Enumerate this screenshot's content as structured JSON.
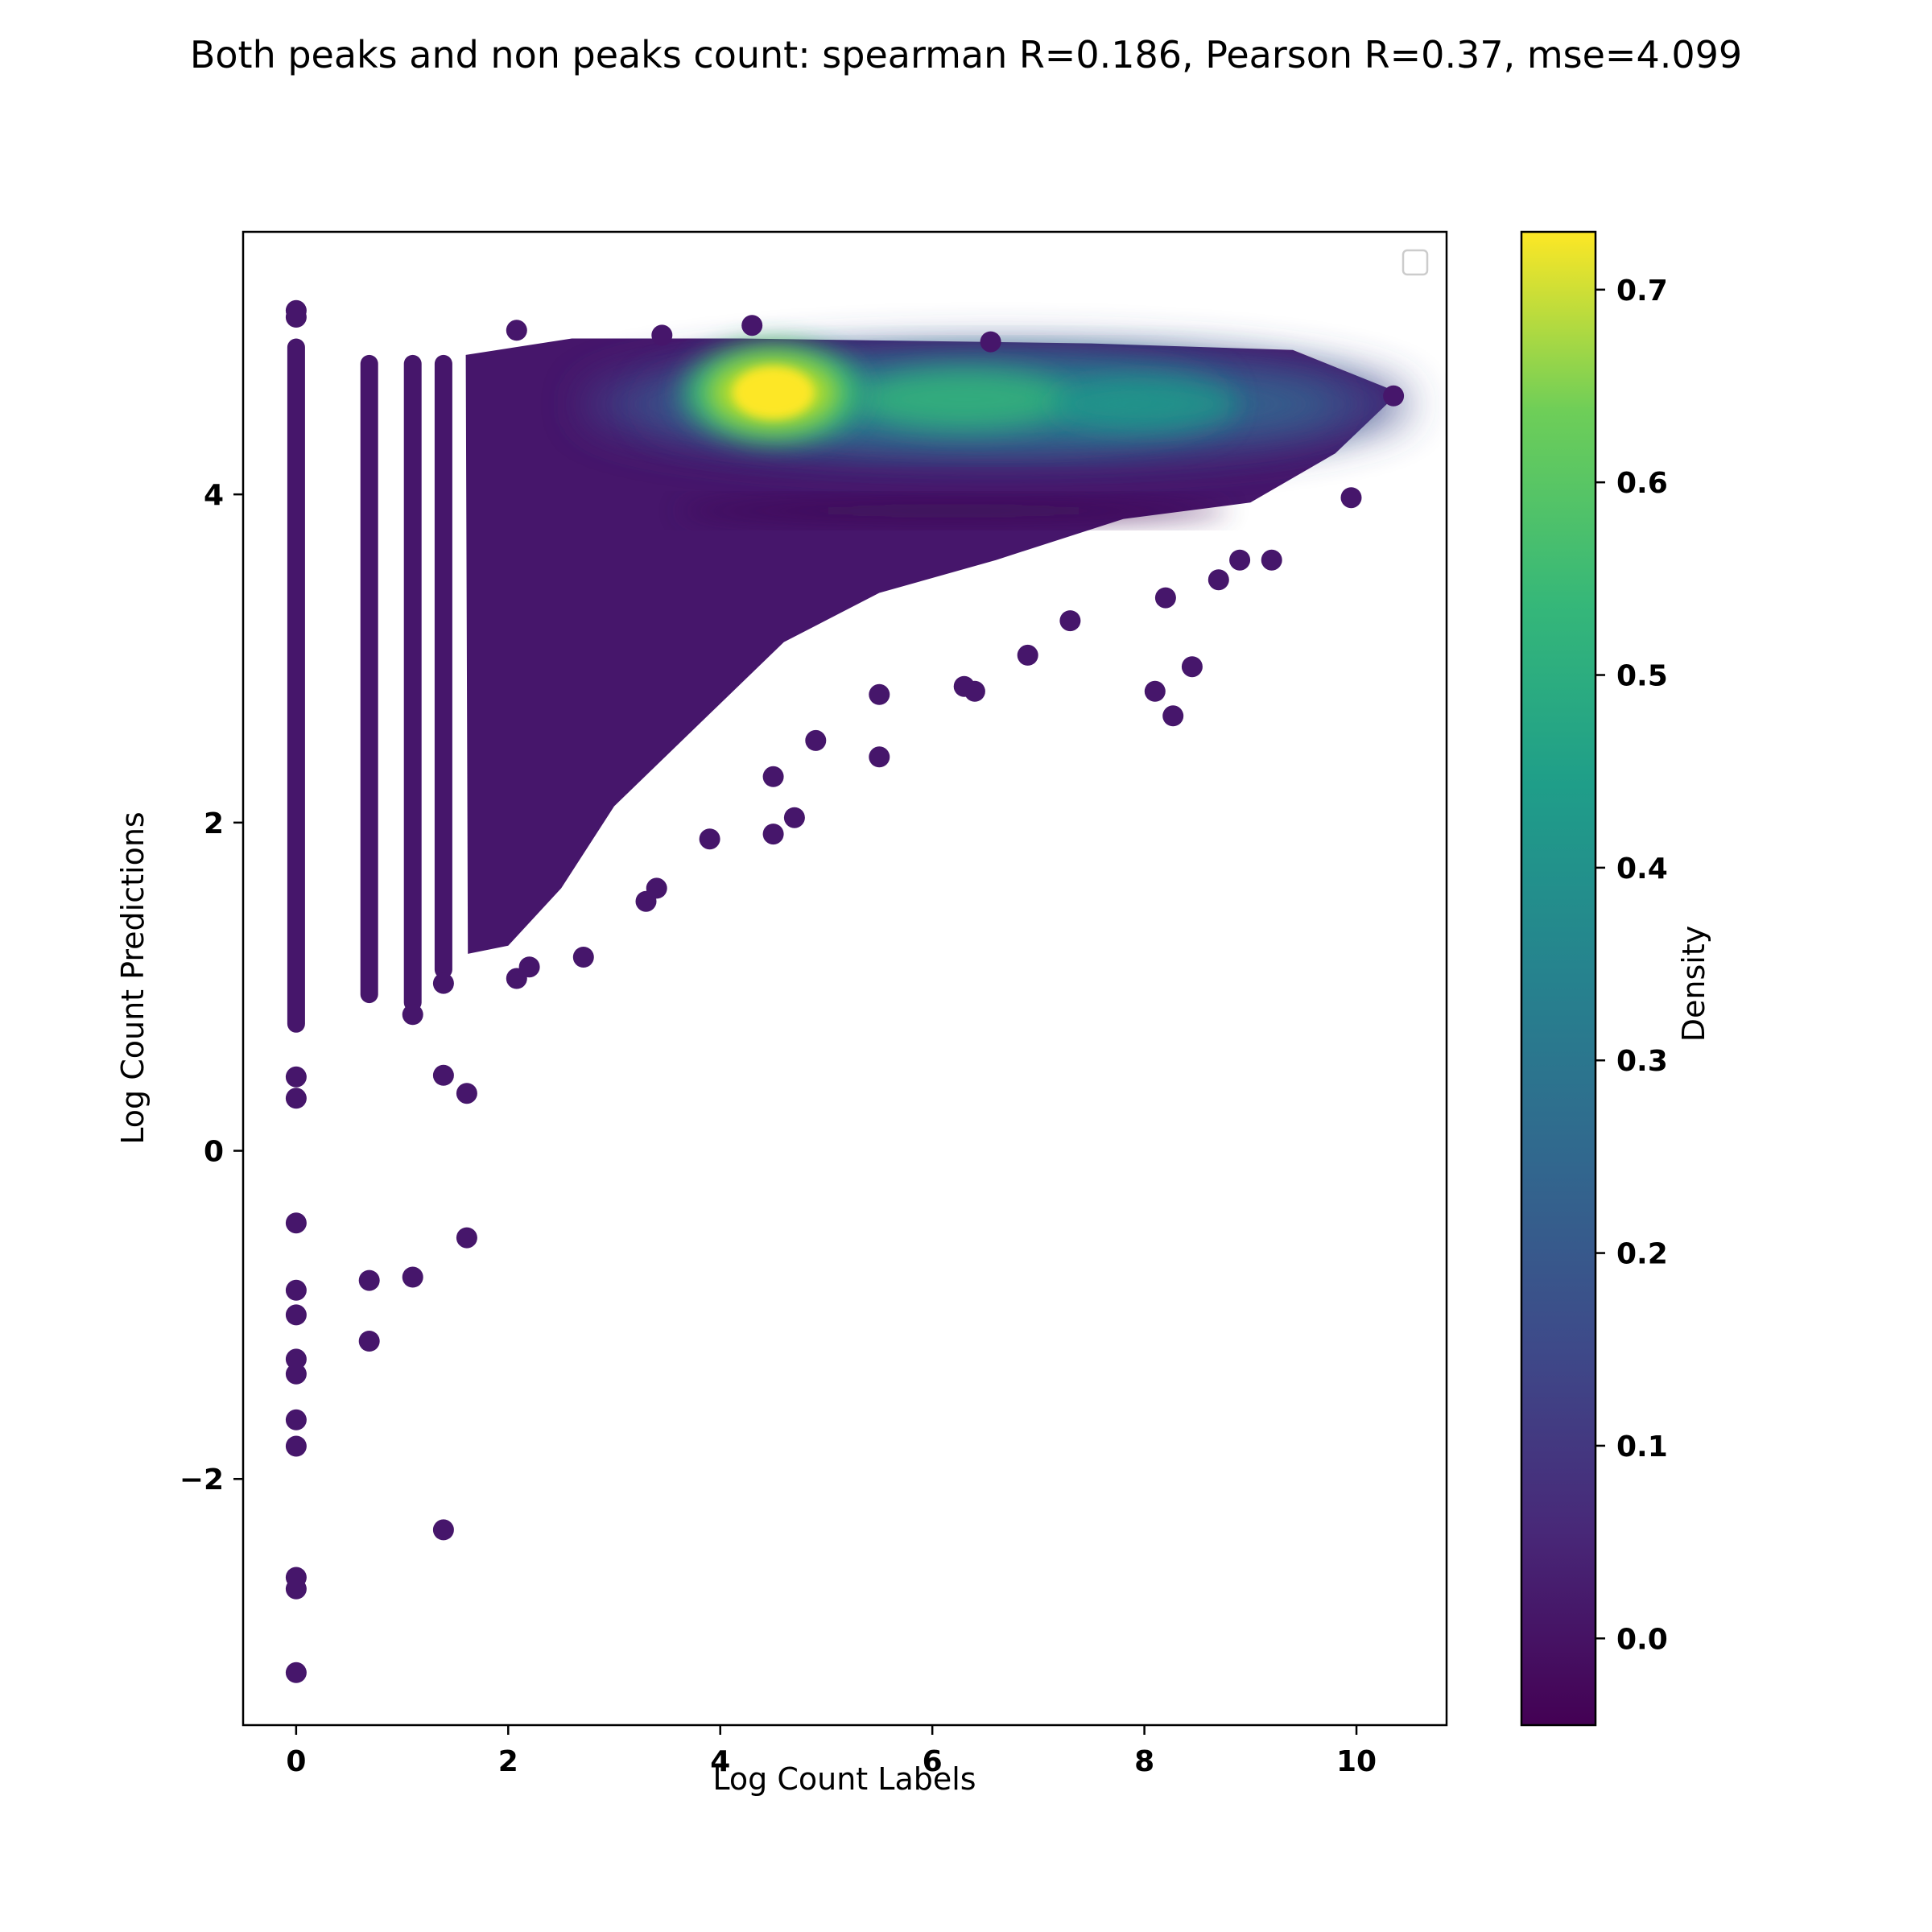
{
  "chart_data": {
    "type": "scatter",
    "title": "Both peaks and non peaks count: spearman R=0.186, Pearson R=0.37, mse=4.099",
    "xlabel": "Log Count Labels",
    "ylabel": "Log Count Predictions",
    "xlim": [
      -0.5,
      10.85
    ],
    "ylim": [
      -3.5,
      5.6
    ],
    "xticks": [
      0,
      2,
      4,
      6,
      8,
      10
    ],
    "xtick_labels": [
      "0",
      "2",
      "4",
      "6",
      "8",
      "10"
    ],
    "yticks": [
      -2,
      0,
      2,
      4
    ],
    "ytick_labels": [
      "−2",
      "0",
      "2",
      "4"
    ],
    "grid": false,
    "legend": "top-right (empty)",
    "colorbar": {
      "label": "Density",
      "colormap": "viridis",
      "range": [
        -0.045,
        0.73
      ],
      "ticks": [
        0.0,
        0.1,
        0.2,
        0.3,
        0.4,
        0.5,
        0.6,
        0.7
      ],
      "tick_labels": [
        "0.0",
        "0.1",
        "0.2",
        "0.3",
        "0.4",
        "0.5",
        "0.6",
        "0.7"
      ]
    },
    "density_peaks": [
      {
        "x": 4.5,
        "y": 4.62,
        "density": 0.72
      },
      {
        "x": 6.3,
        "y": 4.58,
        "density": 0.45
      },
      {
        "x": 8.0,
        "y": 4.55,
        "density": 0.32
      }
    ],
    "outlier_points": [
      {
        "x": 0,
        "y": 5.12
      },
      {
        "x": 0,
        "y": 5.08
      },
      {
        "x": 0,
        "y": 0.45
      },
      {
        "x": 0,
        "y": 0.32
      },
      {
        "x": 0,
        "y": -0.44
      },
      {
        "x": 0,
        "y": -0.85
      },
      {
        "x": 0,
        "y": -1.0
      },
      {
        "x": 0,
        "y": -1.27
      },
      {
        "x": 0,
        "y": -1.36
      },
      {
        "x": 0,
        "y": -1.64
      },
      {
        "x": 0,
        "y": -1.8
      },
      {
        "x": 0,
        "y": -2.6
      },
      {
        "x": 0,
        "y": -2.67
      },
      {
        "x": 0,
        "y": -3.18
      },
      {
        "x": 0.69,
        "y": -0.79
      },
      {
        "x": 0.69,
        "y": -1.16
      },
      {
        "x": 1.1,
        "y": 0.83
      },
      {
        "x": 1.1,
        "y": -0.77
      },
      {
        "x": 1.39,
        "y": 0.46
      },
      {
        "x": 1.39,
        "y": -2.31
      },
      {
        "x": 1.39,
        "y": 1.02
      },
      {
        "x": 1.61,
        "y": 0.35
      },
      {
        "x": 1.61,
        "y": -0.53
      },
      {
        "x": 2.08,
        "y": 1.05
      },
      {
        "x": 2.2,
        "y": 1.12
      },
      {
        "x": 2.71,
        "y": 1.18
      },
      {
        "x": 3.3,
        "y": 1.52
      },
      {
        "x": 3.4,
        "y": 1.6
      },
      {
        "x": 3.9,
        "y": 1.9
      },
      {
        "x": 4.5,
        "y": 1.93
      },
      {
        "x": 4.7,
        "y": 2.03
      },
      {
        "x": 4.9,
        "y": 2.5
      },
      {
        "x": 4.5,
        "y": 2.28
      },
      {
        "x": 5.5,
        "y": 2.4
      },
      {
        "x": 5.5,
        "y": 2.78
      },
      {
        "x": 6.4,
        "y": 2.8
      },
      {
        "x": 6.3,
        "y": 2.83
      },
      {
        "x": 6.9,
        "y": 3.02
      },
      {
        "x": 7.3,
        "y": 3.23
      },
      {
        "x": 8.1,
        "y": 2.8
      },
      {
        "x": 8.27,
        "y": 2.65
      },
      {
        "x": 8.45,
        "y": 2.95
      },
      {
        "x": 8.2,
        "y": 3.37
      },
      {
        "x": 8.7,
        "y": 3.48
      },
      {
        "x": 8.9,
        "y": 3.6
      },
      {
        "x": 9.2,
        "y": 3.6
      },
      {
        "x": 9.95,
        "y": 3.98
      },
      {
        "x": 10.35,
        "y": 4.6
      },
      {
        "x": 2.08,
        "y": 5.0
      },
      {
        "x": 3.45,
        "y": 4.97
      },
      {
        "x": 4.3,
        "y": 5.03
      },
      {
        "x": 6.55,
        "y": 4.93
      }
    ]
  }
}
